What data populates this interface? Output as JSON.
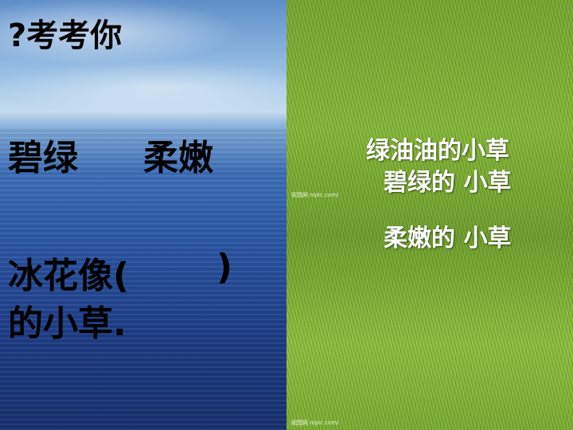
{
  "slide": {
    "title": "?考考你",
    "word_1": "碧绿",
    "word_2": "柔嫩",
    "question_line_1_start": "冰花像(",
    "question_line_1_end": ")",
    "question_line_2": "的小草.",
    "answer_1": "绿油油的小草",
    "answer_2": "碧绿的 小草",
    "answer_3": "柔嫩的  小草",
    "watermark": "昵图网 nipic.com/"
  },
  "colors": {
    "left_text": "#000000",
    "right_text": "#ffffff"
  }
}
